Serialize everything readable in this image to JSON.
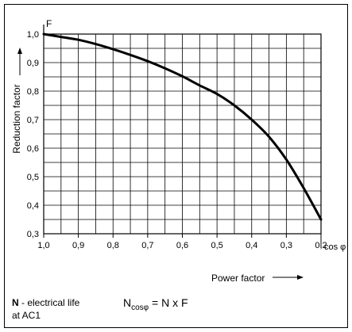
{
  "chart_data": {
    "type": "line",
    "y_symbol": "F",
    "x_symbol": "cos φ",
    "ylabel": "Reduction factor",
    "xlabel": "Power factor",
    "x_reversed": true,
    "xlim": [
      1.0,
      0.2
    ],
    "ylim": [
      0.3,
      1.0
    ],
    "grid": true,
    "x_ticks": [
      "1,0",
      "0,9",
      "0,8",
      "0,7",
      "0,6",
      "0,5",
      "0,4",
      "0,3",
      "0,2"
    ],
    "x_tick_values": [
      1.0,
      0.9,
      0.8,
      0.7,
      0.6,
      0.5,
      0.4,
      0.3,
      0.2
    ],
    "y_ticks": [
      "1,0",
      "0,9",
      "0,8",
      "0,7",
      "0,6",
      "0,5",
      "0,4",
      "0,3"
    ],
    "y_tick_values": [
      1.0,
      0.9,
      0.8,
      0.7,
      0.6,
      0.5,
      0.4,
      0.3
    ],
    "series": [
      {
        "x": [
          1.0,
          0.95,
          0.9,
          0.85,
          0.8,
          0.75,
          0.7,
          0.65,
          0.6,
          0.55,
          0.5,
          0.45,
          0.4,
          0.35,
          0.3,
          0.25,
          0.2
        ],
        "y": [
          1.0,
          0.99,
          0.98,
          0.965,
          0.947,
          0.927,
          0.905,
          0.88,
          0.852,
          0.82,
          0.79,
          0.75,
          0.7,
          0.64,
          0.56,
          0.46,
          0.35
        ]
      }
    ]
  },
  "notes": {
    "n_bold": "N",
    "n_text": " - electrical life",
    "n_text2": "at AC1",
    "formula_N": "N",
    "formula_sub": "cosφ",
    "formula_rest": " = N x F"
  },
  "colors": {
    "line": "#000000",
    "grid": "#000000",
    "border": "#000000"
  }
}
